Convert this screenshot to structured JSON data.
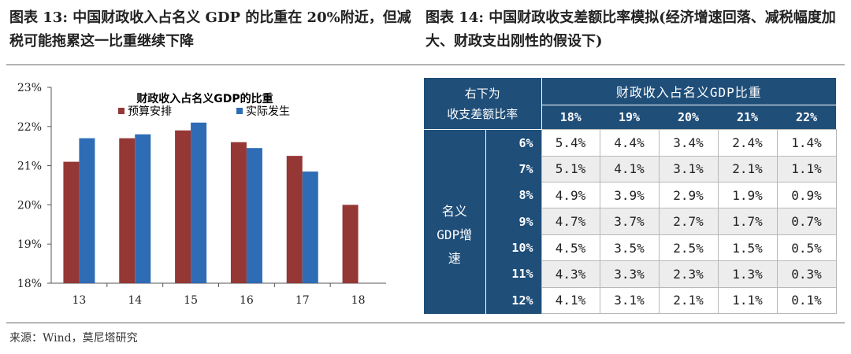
{
  "figure13": {
    "title": "图表 13: 中国财政收入占名义 GDP 的比重在 20%附近，但减税可能拖累这一比重继续下降"
  },
  "figure14": {
    "title": "图表 14: 中国财政收支差额比率模拟(经济增速回落、减税幅度加大、财政支出刚性的假设下)",
    "corner_line1": "右下为",
    "corner_line2": "收支差额比率",
    "column_group_label": "财政收入占名义GDP比重",
    "row_group_label_lines": [
      "名义",
      "GDP增",
      "速"
    ],
    "columns": [
      "18%",
      "19%",
      "20%",
      "21%",
      "22%"
    ],
    "rows": [
      {
        "growth": "6%",
        "values": [
          "5.4%",
          "4.4%",
          "3.4%",
          "2.4%",
          "1.4%"
        ]
      },
      {
        "growth": "7%",
        "values": [
          "5.1%",
          "4.1%",
          "3.1%",
          "2.1%",
          "1.1%"
        ]
      },
      {
        "growth": "8%",
        "values": [
          "4.9%",
          "3.9%",
          "2.9%",
          "1.9%",
          "0.9%"
        ]
      },
      {
        "growth": "9%",
        "values": [
          "4.7%",
          "3.7%",
          "2.7%",
          "1.7%",
          "0.7%"
        ]
      },
      {
        "growth": "10%",
        "values": [
          "4.5%",
          "3.5%",
          "2.5%",
          "1.5%",
          "0.5%"
        ]
      },
      {
        "growth": "11%",
        "values": [
          "4.3%",
          "3.3%",
          "2.3%",
          "1.3%",
          "0.3%"
        ]
      },
      {
        "growth": "12%",
        "values": [
          "4.1%",
          "3.1%",
          "2.1%",
          "1.1%",
          "0.1%"
        ]
      }
    ],
    "header_color": "#1f4e79"
  },
  "source": "来源：Wind，莫尼塔研究",
  "chart_data": {
    "type": "bar",
    "title": "财政收入占名义GDP的比重",
    "categories": [
      "13",
      "14",
      "15",
      "16",
      "17",
      "18"
    ],
    "series": [
      {
        "name": "预算安排",
        "color": "#953735",
        "values": [
          21.1,
          21.7,
          21.9,
          21.6,
          21.25,
          20.0
        ]
      },
      {
        "name": "实际发生",
        "color": "#2e6cb5",
        "values": [
          21.7,
          21.8,
          22.1,
          21.45,
          20.85,
          null
        ]
      }
    ],
    "ylim": [
      18,
      23
    ],
    "yticks": [
      "18%",
      "19%",
      "20%",
      "21%",
      "22%",
      "23%"
    ],
    "ytick_values": [
      18,
      19,
      20,
      21,
      22,
      23
    ],
    "xlabel": "",
    "ylabel": "",
    "grid": false,
    "legend_position": "top-center"
  }
}
